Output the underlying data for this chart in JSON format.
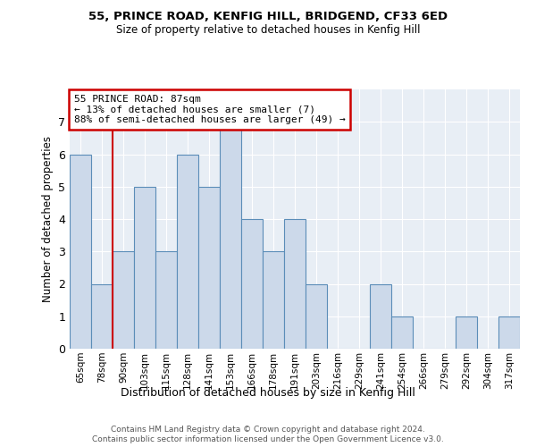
{
  "title1": "55, PRINCE ROAD, KENFIG HILL, BRIDGEND, CF33 6ED",
  "title2": "Size of property relative to detached houses in Kenfig Hill",
  "xlabel": "Distribution of detached houses by size in Kenfig Hill",
  "ylabel": "Number of detached properties",
  "categories": [
    "65sqm",
    "78sqm",
    "90sqm",
    "103sqm",
    "115sqm",
    "128sqm",
    "141sqm",
    "153sqm",
    "166sqm",
    "178sqm",
    "191sqm",
    "203sqm",
    "216sqm",
    "229sqm",
    "241sqm",
    "254sqm",
    "266sqm",
    "279sqm",
    "292sqm",
    "304sqm",
    "317sqm"
  ],
  "values": [
    6,
    2,
    3,
    5,
    3,
    6,
    5,
    7,
    4,
    3,
    4,
    2,
    0,
    0,
    2,
    1,
    0,
    0,
    1,
    0,
    1
  ],
  "bar_color": "#ccd9ea",
  "bar_edge_color": "#5b8db8",
  "ylim": [
    0,
    8
  ],
  "yticks": [
    0,
    1,
    2,
    3,
    4,
    5,
    6,
    7
  ],
  "red_line_x": 1.5,
  "annotation_title": "55 PRINCE ROAD: 87sqm",
  "annotation_line1": "← 13% of detached houses are smaller (7)",
  "annotation_line2": "88% of semi-detached houses are larger (49) →",
  "annotation_box_color": "#ffffff",
  "annotation_box_edge": "#cc0000",
  "footnote1": "Contains HM Land Registry data © Crown copyright and database right 2024.",
  "footnote2": "Contains public sector information licensed under the Open Government Licence v3.0.",
  "plot_bg_color": "#e8eef5"
}
